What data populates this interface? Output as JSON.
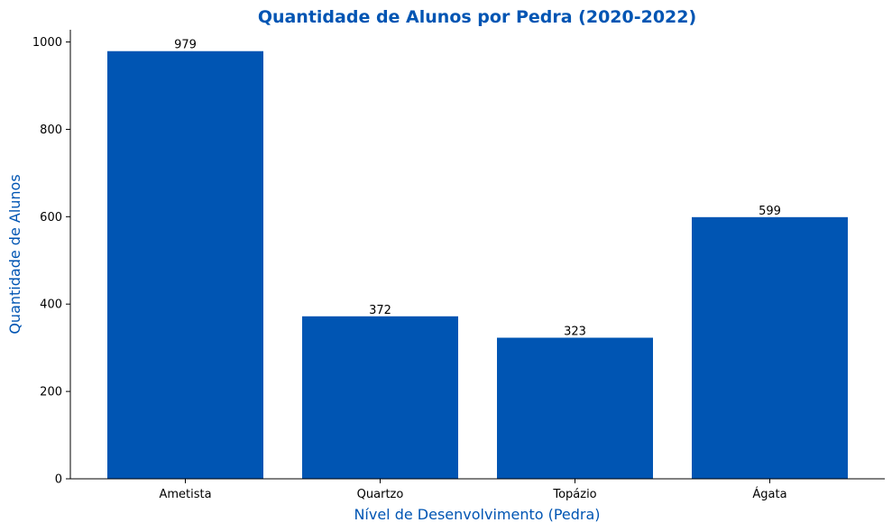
{
  "chart_data": {
    "type": "bar",
    "title": "Quantidade de Alunos por Pedra (2020-2022)",
    "xlabel": "Nível de Desenvolvimento (Pedra)",
    "ylabel": "Quantidade de Alunos",
    "categories": [
      "Ametista",
      "Quartzo",
      "Topázio",
      "Ágata"
    ],
    "values": [
      979,
      372,
      323,
      599
    ],
    "data_labels": [
      "979",
      "372",
      "323",
      "599"
    ],
    "yticks": [
      0,
      200,
      400,
      600,
      800,
      1000
    ],
    "ylim": [
      0,
      1028
    ],
    "grid": false,
    "legend": "none",
    "colors": {
      "bar": "#0055b3",
      "title": "#0055b3",
      "axis_label": "#0055b3",
      "axis": "#000000"
    }
  }
}
